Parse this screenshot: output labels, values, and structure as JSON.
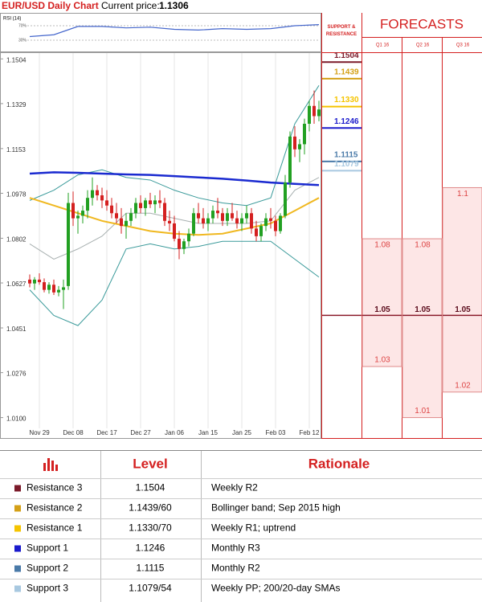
{
  "chart_data": {
    "type": "candlestick",
    "title": "EUR/USD Daily Chart",
    "current_price_label": "Current price:",
    "current_price": 1.1306,
    "categories": [
      null,
      null,
      "Nov 29",
      null,
      null,
      null,
      null,
      null,
      null,
      "Dec 08",
      null,
      null,
      null,
      null,
      null,
      null,
      "Dec 17",
      null,
      null,
      null,
      null,
      null,
      null,
      "Dec 27",
      null,
      null,
      null,
      null,
      null,
      null,
      "Jan 06",
      null,
      null,
      null,
      null,
      null,
      null,
      "Jan 15",
      null,
      null,
      null,
      null,
      null,
      null,
      "Jan 25",
      null,
      null,
      null,
      null,
      null,
      null,
      "Feb 03",
      null,
      null,
      null,
      null,
      null,
      null,
      "Feb 12",
      null,
      null
    ],
    "candles": {
      "open": [
        1.064,
        1.0625,
        1.064,
        1.063,
        1.06,
        1.062,
        1.059,
        1.06,
        1.0615,
        1.094,
        1.088,
        1.089,
        1.091,
        1.096,
        1.099,
        1.097,
        1.095,
        1.093,
        1.09,
        1.088,
        1.085,
        1.087,
        1.09,
        1.094,
        1.092,
        1.095,
        1.0935,
        1.095,
        1.094,
        1.087,
        1.086,
        1.08,
        1.076,
        1.079,
        1.082,
        1.09,
        1.088,
        1.086,
        1.088,
        1.091,
        1.09,
        1.087,
        1.09,
        1.088,
        1.086,
        1.088,
        1.09,
        1.084,
        1.081,
        1.085,
        1.088,
        1.087,
        1.083,
        1.089,
        1.102,
        1.12,
        1.115,
        1.117,
        1.125,
        1.132,
        1.128
      ],
      "high": [
        1.066,
        1.065,
        1.0665,
        1.0645,
        1.063,
        1.064,
        1.0615,
        1.064,
        1.098,
        1.0985,
        1.091,
        1.093,
        1.099,
        1.104,
        1.101,
        1.1,
        1.099,
        1.096,
        1.094,
        1.092,
        1.09,
        1.092,
        1.096,
        1.097,
        1.096,
        1.098,
        1.097,
        1.099,
        1.096,
        1.091,
        1.089,
        1.083,
        1.08,
        1.084,
        1.092,
        1.094,
        1.092,
        1.09,
        1.093,
        1.096,
        1.092,
        1.092,
        1.094,
        1.091,
        1.09,
        1.093,
        1.092,
        1.087,
        1.086,
        1.09,
        1.092,
        1.089,
        1.09,
        1.105,
        1.122,
        1.124,
        1.119,
        1.127,
        1.134,
        1.138,
        1.134
      ],
      "low": [
        1.061,
        1.06,
        1.062,
        1.059,
        1.0585,
        1.058,
        1.0575,
        1.0525,
        1.06,
        1.085,
        1.082,
        1.086,
        1.088,
        1.093,
        1.095,
        1.092,
        1.091,
        1.088,
        1.086,
        1.082,
        1.08,
        1.085,
        1.088,
        1.09,
        1.089,
        1.092,
        1.09,
        1.092,
        1.085,
        1.083,
        1.079,
        1.072,
        1.074,
        1.077,
        1.081,
        1.086,
        1.084,
        1.083,
        1.086,
        1.088,
        1.085,
        1.085,
        1.087,
        1.084,
        1.083,
        1.086,
        1.082,
        1.079,
        1.079,
        1.083,
        1.084,
        1.081,
        1.082,
        1.088,
        1.1,
        1.112,
        1.11,
        1.113,
        1.122,
        1.125,
        1.126
      ],
      "close": [
        1.0625,
        1.064,
        1.063,
        1.06,
        1.062,
        1.059,
        1.06,
        1.061,
        1.094,
        1.088,
        1.089,
        1.091,
        1.096,
        1.099,
        1.097,
        1.095,
        1.093,
        1.09,
        1.088,
        1.085,
        1.087,
        1.09,
        1.094,
        1.092,
        1.095,
        1.0935,
        1.095,
        1.094,
        1.087,
        1.086,
        1.08,
        1.076,
        1.079,
        1.082,
        1.09,
        1.088,
        1.086,
        1.088,
        1.091,
        1.09,
        1.087,
        1.09,
        1.088,
        1.086,
        1.088,
        1.09,
        1.084,
        1.081,
        1.085,
        1.088,
        1.087,
        1.083,
        1.089,
        1.102,
        1.12,
        1.115,
        1.117,
        1.125,
        1.132,
        1.128,
        1.1306
      ]
    },
    "up_color": "#22a022",
    "down_color": "#d42020",
    "overlay_x": [
      0,
      5,
      10,
      15,
      20,
      25,
      30,
      35,
      40,
      45,
      50,
      55,
      60
    ],
    "overlays": [
      {
        "color": "#a8b0b0",
        "width": 1,
        "values": [
          1.078,
          1.072,
          1.076,
          1.081,
          1.09,
          1.09,
          1.088,
          1.086,
          1.086,
          1.086,
          1.087,
          1.099,
          1.104
        ]
      },
      {
        "color": "#3a9a9a",
        "width": 1,
        "values": [
          1.095,
          1.099,
          1.105,
          1.107,
          1.104,
          1.103,
          1.099,
          1.096,
          1.094,
          1.093,
          1.096,
          1.125,
          1.14
        ]
      },
      {
        "color": "#3a9a9a",
        "width": 1,
        "values": [
          1.06,
          1.05,
          1.046,
          1.056,
          1.076,
          1.078,
          1.076,
          1.077,
          1.079,
          1.079,
          1.079,
          1.072,
          1.065
        ]
      },
      {
        "color": "#1a2ad0",
        "width": 2.5,
        "values": [
          1.1055,
          1.106,
          1.1058,
          1.1055,
          1.1052,
          1.105,
          1.1045,
          1.104,
          1.1035,
          1.1028,
          1.102,
          1.1015,
          1.101
        ]
      },
      {
        "color": "#f0b820",
        "width": 2,
        "values": [
          1.096,
          1.093,
          1.09,
          1.087,
          1.085,
          1.083,
          1.082,
          1.0815,
          1.082,
          1.084,
          1.086,
          1.091,
          1.096
        ]
      }
    ],
    "ylim": [
      1.002,
      1.153
    ],
    "yticks": [
      1.1504,
      1.1329,
      1.1153,
      1.0978,
      1.0802,
      1.0627,
      1.0451,
      1.0276,
      {
        "value": 1.01,
        "label": "1.0100"
      }
    ],
    "grid": true,
    "rsi": {
      "title": "RSI (14)",
      "color": "#4466cc",
      "values": [
        40,
        45,
        68,
        68,
        64,
        66,
        60,
        58,
        62,
        60,
        62,
        70,
        73
      ],
      "ylim": [
        0,
        100
      ],
      "yticks": [
        {
          "value": 70,
          "label": "70%"
        },
        {
          "value": 30,
          "label": "30%"
        }
      ]
    },
    "levels": {
      "title": "SUPPORT & RESISTANCE",
      "values": [
        1.1504,
        1.1439,
        1.133,
        1.1246,
        1.1115,
        1.1079
      ],
      "value_labels": [
        "1.1504",
        "1.1439",
        "1.1330",
        "1.1246",
        "1.1115",
        "1.1079"
      ],
      "colors": [
        "#7b1a2a",
        "#d4a017",
        "#f5c400",
        "#1a1acc",
        "#4a7aa8",
        "#a8c8e0"
      ]
    },
    "forecasts": {
      "title": "FORECASTS",
      "columns": [
        "Q1 16",
        "Q2 16",
        "Q3 16"
      ],
      "high": [
        1.08,
        1.08,
        1.1
      ],
      "mid": [
        1.05,
        1.05,
        1.05
      ],
      "low": [
        1.03,
        1.01,
        1.02
      ]
    }
  },
  "table": {
    "columns": [
      "Level",
      "Rationale"
    ],
    "rows": [
      [
        "Resistance 3",
        "1.1504",
        "Weekly R2"
      ],
      [
        "Resistance 2",
        "1.1439/60",
        "Bollinger band; Sep 2015 high"
      ],
      [
        "Resistance 1",
        "1.1330/70",
        "Weekly R1; uptrend"
      ],
      [
        "Support 1",
        "1.1246",
        "Monthly R3"
      ],
      [
        "Support 2",
        "1.1115",
        "Monthly R2"
      ],
      [
        "Support 3",
        "1.1079/54",
        "Weekly PP; 200/20-day SMAs"
      ]
    ]
  }
}
